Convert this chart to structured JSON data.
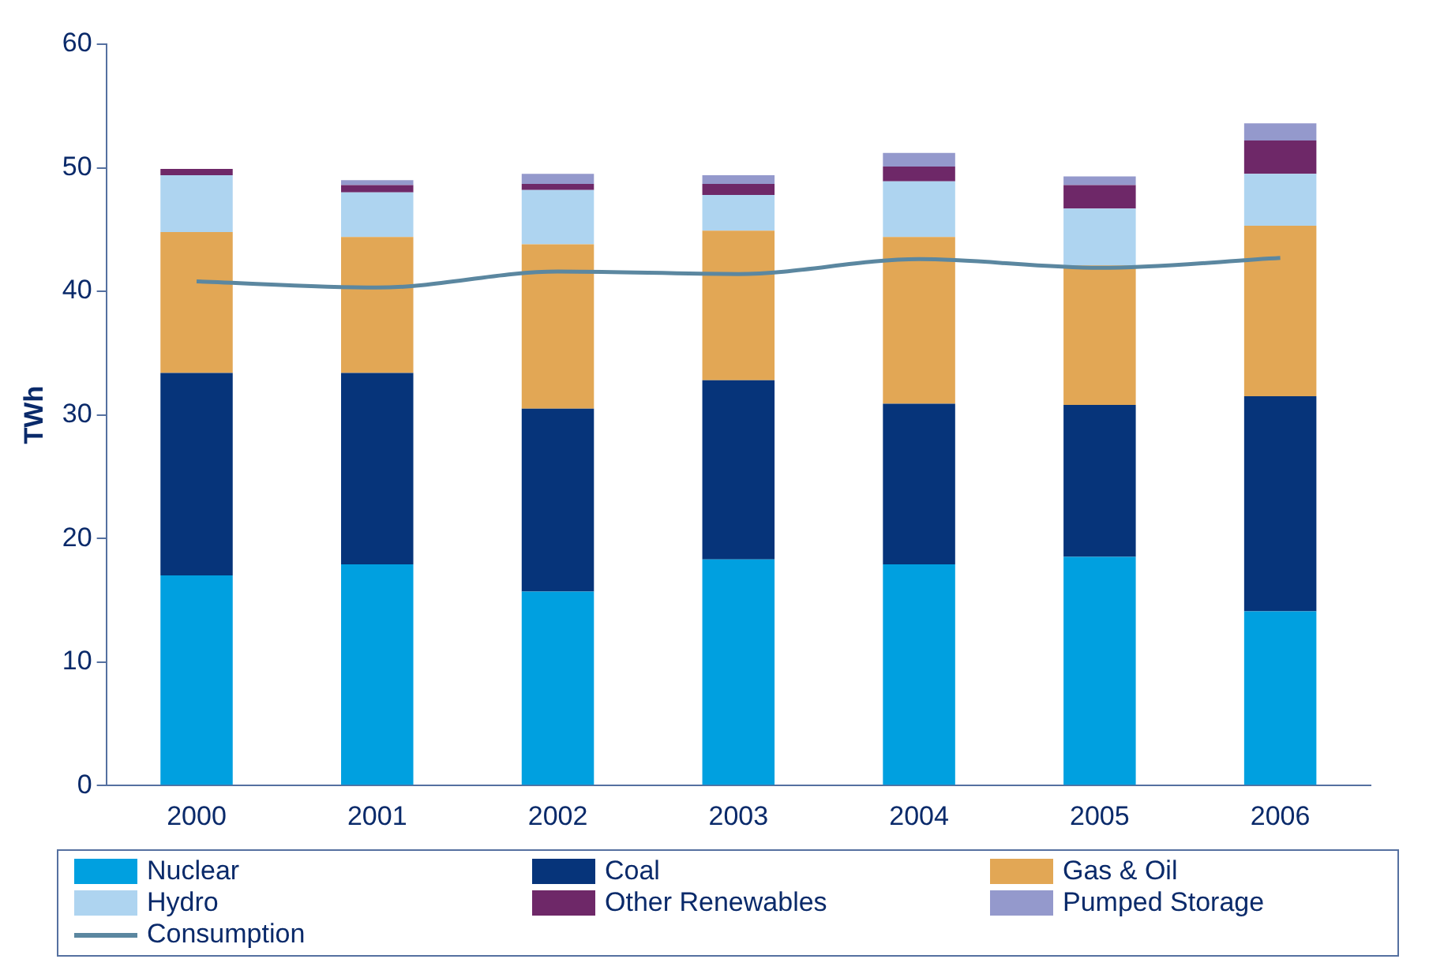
{
  "chart_data": {
    "type": "bar",
    "stacked": true,
    "ylabel": "TWh",
    "categories": [
      "2000",
      "2001",
      "2002",
      "2003",
      "2004",
      "2005",
      "2006"
    ],
    "series": [
      {
        "name": "Nuclear",
        "color": "#00a0e0",
        "values": [
          17.0,
          17.9,
          15.7,
          18.3,
          17.9,
          18.5,
          14.1
        ]
      },
      {
        "name": "Coal",
        "color": "#06347a",
        "values": [
          16.4,
          15.5,
          14.8,
          14.5,
          13.0,
          12.3,
          17.4
        ]
      },
      {
        "name": "Gas & Oil",
        "color": "#e2a755",
        "values": [
          11.4,
          11.0,
          13.3,
          12.1,
          13.5,
          11.3,
          13.8
        ]
      },
      {
        "name": "Hydro",
        "color": "#aed4f0",
        "values": [
          4.6,
          3.6,
          4.4,
          2.9,
          4.5,
          4.6,
          4.2
        ]
      },
      {
        "name": "Other Renewables",
        "color": "#6e2868",
        "values": [
          0.5,
          0.6,
          0.5,
          0.9,
          1.2,
          1.9,
          2.7
        ]
      },
      {
        "name": "Pumped Storage",
        "color": "#9499cc",
        "values": [
          0,
          0.4,
          0.8,
          0.7,
          1.1,
          0.7,
          1.4
        ]
      },
      {
        "name": "Consumption",
        "type": "line",
        "color": "#5b87a0",
        "values": [
          40.8,
          40.3,
          41.6,
          41.4,
          42.6,
          41.9,
          42.7
        ]
      }
    ],
    "ylim": [
      0,
      60
    ],
    "yticks": [
      0,
      10,
      20,
      30,
      40,
      50,
      60
    ],
    "grid": false,
    "legend": "bottom",
    "marker": "none"
  }
}
